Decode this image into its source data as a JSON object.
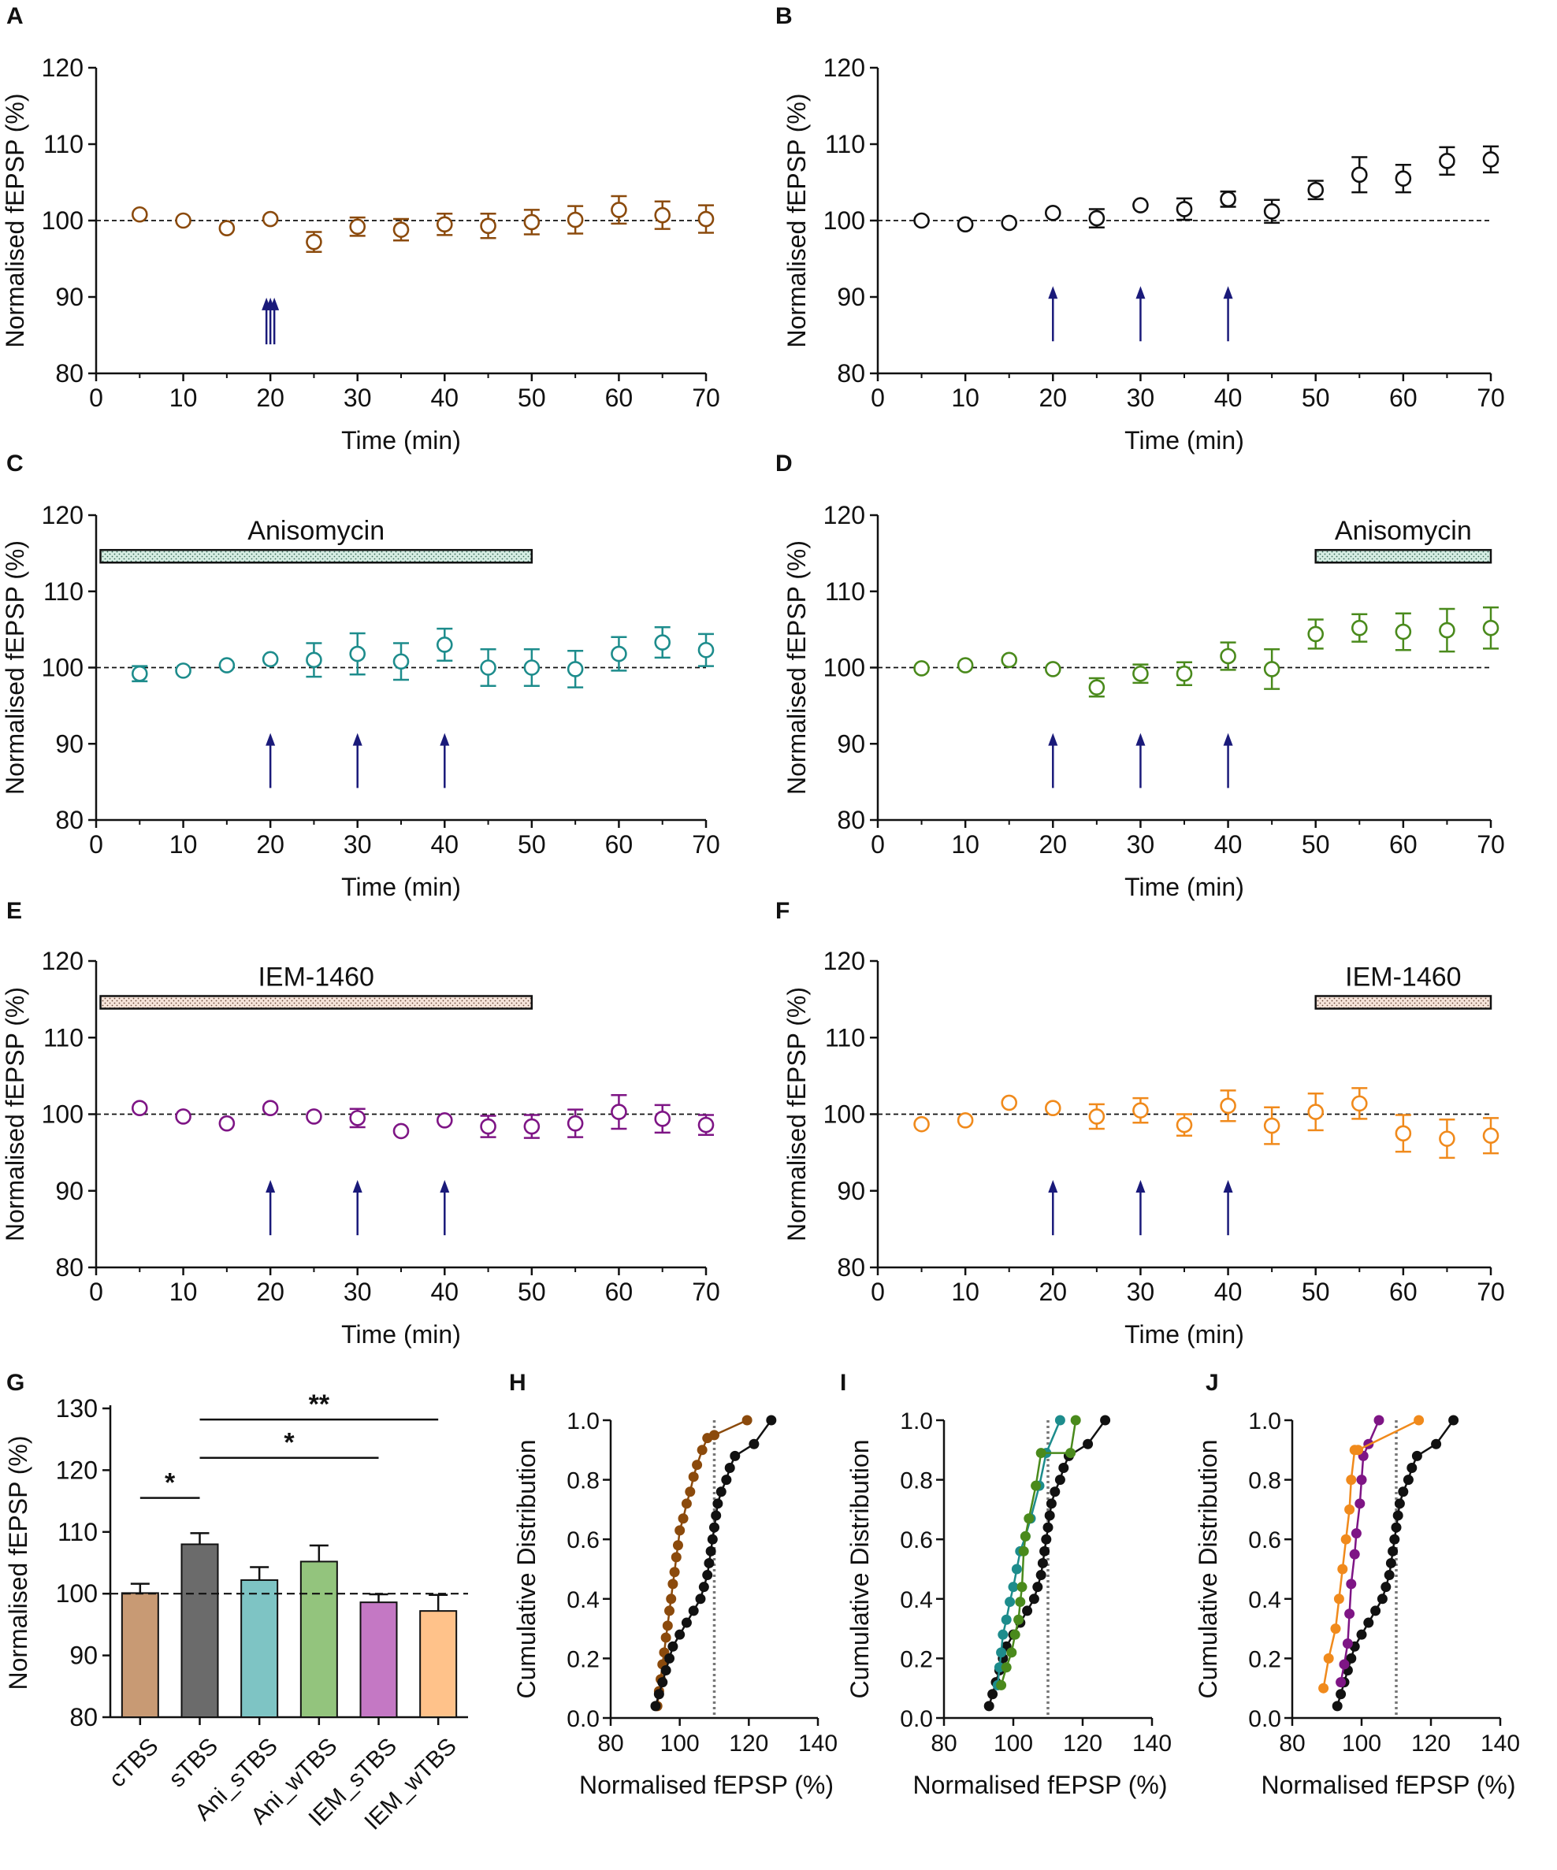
{
  "colors": {
    "A": "#8B4A0C",
    "B": "#111111",
    "C": "#1D8C8C",
    "D": "#4A8A1C",
    "E": "#7E1585",
    "F": "#F08A1C",
    "arrow": "#1A1A7A",
    "bar_aniso_fill": "#D6EDE3",
    "bar_iem_fill": "#F6E4DA"
  },
  "chart_data": [
    {
      "id": "A",
      "type": "scatter",
      "panel_label": "A",
      "xlabel": "Time (min)",
      "ylabel": "Normalised fEPSP (%)",
      "xlim": [
        0,
        70
      ],
      "ylim": [
        80,
        120
      ],
      "xticks": [
        "0",
        "10",
        "20",
        "30",
        "40",
        "50",
        "60",
        "70"
      ],
      "yticks": [
        "80",
        "90",
        "100",
        "110",
        "120"
      ],
      "baseline": 100,
      "x": [
        5,
        10,
        15,
        20,
        25,
        30,
        35,
        40,
        45,
        50,
        55,
        60,
        65,
        70
      ],
      "y": [
        100.8,
        100.0,
        99.0,
        100.2,
        97.2,
        99.2,
        98.8,
        99.5,
        99.3,
        99.8,
        100.1,
        101.4,
        100.7,
        100.2
      ],
      "err": [
        0.3,
        0.3,
        0.4,
        0.4,
        1.3,
        1.2,
        1.4,
        1.4,
        1.6,
        1.6,
        1.8,
        1.8,
        1.8,
        1.8
      ],
      "arrows": [
        {
          "x": 20,
          "count": 3
        }
      ],
      "drug_bar": null
    },
    {
      "id": "B",
      "type": "scatter",
      "panel_label": "B",
      "xlabel": "Time (min)",
      "ylabel": "Normalised fEPSP (%)",
      "xlim": [
        0,
        70
      ],
      "ylim": [
        80,
        120
      ],
      "xticks": [
        "0",
        "10",
        "20",
        "30",
        "40",
        "50",
        "60",
        "70"
      ],
      "yticks": [
        "80",
        "90",
        "100",
        "110",
        "120"
      ],
      "baseline": 100,
      "x": [
        5,
        10,
        15,
        20,
        25,
        30,
        35,
        40,
        45,
        50,
        55,
        60,
        65,
        70
      ],
      "y": [
        100.0,
        99.5,
        99.7,
        101.0,
        100.3,
        102.0,
        101.5,
        102.8,
        101.2,
        104.0,
        106.0,
        105.5,
        107.8,
        108.0
      ],
      "err": [
        0.3,
        0.3,
        0.4,
        0.4,
        1.2,
        0.5,
        1.4,
        1.0,
        1.5,
        1.2,
        2.3,
        1.8,
        1.8,
        1.7
      ],
      "arrows": [
        {
          "x": 20,
          "count": 1
        },
        {
          "x": 30,
          "count": 1
        },
        {
          "x": 40,
          "count": 1
        }
      ],
      "drug_bar": null
    },
    {
      "id": "C",
      "type": "scatter",
      "panel_label": "C",
      "xlabel": "Time (min)",
      "ylabel": "Normalised fEPSP (%)",
      "xlim": [
        0,
        70
      ],
      "ylim": [
        80,
        120
      ],
      "xticks": [
        "0",
        "10",
        "20",
        "30",
        "40",
        "50",
        "60",
        "70"
      ],
      "yticks": [
        "80",
        "90",
        "100",
        "110",
        "120"
      ],
      "baseline": 100,
      "x": [
        5,
        10,
        15,
        20,
        25,
        30,
        35,
        40,
        45,
        50,
        55,
        60,
        65,
        70
      ],
      "y": [
        99.2,
        99.6,
        100.3,
        101.1,
        101.0,
        101.8,
        100.8,
        103.0,
        100.0,
        100.0,
        99.8,
        101.8,
        103.3,
        102.3
      ],
      "err": [
        1.0,
        0.3,
        0.3,
        0.5,
        2.2,
        2.7,
        2.4,
        2.1,
        2.4,
        2.4,
        2.4,
        2.2,
        2.0,
        2.1
      ],
      "arrows": [
        {
          "x": 20,
          "count": 1
        },
        {
          "x": 30,
          "count": 1
        },
        {
          "x": 40,
          "count": 1
        }
      ],
      "drug_bar": {
        "label": "Anisomycin",
        "x_start": 0.5,
        "x_end": 50,
        "fill": "aniso"
      }
    },
    {
      "id": "D",
      "type": "scatter",
      "panel_label": "D",
      "xlabel": "Time (min)",
      "ylabel": "Normalised fEPSP (%)",
      "xlim": [
        0,
        70
      ],
      "ylim": [
        80,
        120
      ],
      "xticks": [
        "0",
        "10",
        "20",
        "30",
        "40",
        "50",
        "60",
        "70"
      ],
      "yticks": [
        "80",
        "90",
        "100",
        "110",
        "120"
      ],
      "baseline": 100,
      "x": [
        5,
        10,
        15,
        20,
        25,
        30,
        35,
        40,
        45,
        50,
        55,
        60,
        65,
        70
      ],
      "y": [
        99.9,
        100.3,
        101.0,
        99.8,
        97.4,
        99.2,
        99.2,
        101.5,
        99.8,
        104.4,
        105.2,
        104.7,
        104.9,
        105.2
      ],
      "err": [
        0.3,
        0.3,
        0.4,
        0.4,
        1.2,
        1.2,
        1.5,
        1.8,
        2.6,
        1.9,
        1.8,
        2.4,
        2.8,
        2.7
      ],
      "arrows": [
        {
          "x": 20,
          "count": 1
        },
        {
          "x": 30,
          "count": 1
        },
        {
          "x": 40,
          "count": 1
        }
      ],
      "drug_bar": {
        "label": "Anisomycin",
        "x_start": 50,
        "x_end": 70,
        "fill": "aniso"
      }
    },
    {
      "id": "E",
      "type": "scatter",
      "panel_label": "E",
      "xlabel": "Time (min)",
      "ylabel": "Normalised fEPSP (%)",
      "xlim": [
        0,
        70
      ],
      "ylim": [
        80,
        120
      ],
      "xticks": [
        "0",
        "10",
        "20",
        "30",
        "40",
        "50",
        "60",
        "70"
      ],
      "yticks": [
        "80",
        "90",
        "100",
        "110",
        "120"
      ],
      "baseline": 100,
      "x": [
        5,
        10,
        15,
        20,
        25,
        30,
        35,
        40,
        45,
        50,
        55,
        60,
        65,
        70
      ],
      "y": [
        100.8,
        99.7,
        98.8,
        100.8,
        99.7,
        99.5,
        97.8,
        99.2,
        98.4,
        98.4,
        98.8,
        100.3,
        99.4,
        98.6
      ],
      "err": [
        0.3,
        0.3,
        0.4,
        0.4,
        0.5,
        1.2,
        0.4,
        0.5,
        1.4,
        1.5,
        1.8,
        2.2,
        1.8,
        1.3
      ],
      "arrows": [
        {
          "x": 20,
          "count": 1
        },
        {
          "x": 30,
          "count": 1
        },
        {
          "x": 40,
          "count": 1
        }
      ],
      "drug_bar": {
        "label": "IEM-1460",
        "x_start": 0.5,
        "x_end": 50,
        "fill": "iem"
      }
    },
    {
      "id": "F",
      "type": "scatter",
      "panel_label": "F",
      "xlabel": "Time (min)",
      "ylabel": "Normalised fEPSP (%)",
      "xlim": [
        0,
        70
      ],
      "ylim": [
        80,
        120
      ],
      "xticks": [
        "0",
        "10",
        "20",
        "30",
        "40",
        "50",
        "60",
        "70"
      ],
      "yticks": [
        "80",
        "90",
        "100",
        "110",
        "120"
      ],
      "baseline": 100,
      "x": [
        5,
        10,
        15,
        20,
        25,
        30,
        35,
        40,
        45,
        50,
        55,
        60,
        65,
        70
      ],
      "y": [
        98.7,
        99.2,
        101.5,
        100.8,
        99.7,
        100.5,
        98.6,
        101.1,
        98.5,
        100.3,
        101.4,
        97.5,
        96.8,
        97.2
      ],
      "err": [
        0.3,
        0.3,
        0.4,
        0.4,
        1.6,
        1.6,
        1.4,
        2.0,
        2.4,
        2.4,
        2.0,
        2.4,
        2.5,
        2.3
      ],
      "arrows": [
        {
          "x": 20,
          "count": 1
        },
        {
          "x": 30,
          "count": 1
        },
        {
          "x": 40,
          "count": 1
        }
      ],
      "drug_bar": {
        "label": "IEM-1460",
        "x_start": 50,
        "x_end": 70,
        "fill": "iem"
      }
    },
    {
      "id": "G",
      "type": "bar",
      "panel_label": "G",
      "ylabel": "Normalised fEPSP (%)",
      "ylim": [
        80,
        130
      ],
      "yticks": [
        "80",
        "90",
        "100",
        "110",
        "120",
        "130"
      ],
      "baseline": 100,
      "categories": [
        "cTBS",
        "sTBS",
        "Ani_sTBS",
        "Ani_wTBS",
        "IEM_sTBS",
        "IEM_wTBS"
      ],
      "values": [
        100.1,
        108.0,
        102.2,
        105.2,
        98.6,
        97.2
      ],
      "errors": [
        1.5,
        1.8,
        2.1,
        2.6,
        1.3,
        2.6
      ],
      "fills": [
        "#C89A74",
        "#6B6B6B",
        "#7EC4C4",
        "#93C47D",
        "#C478C4",
        "#FFC28A"
      ],
      "significance": [
        {
          "from": 0,
          "to": 1,
          "y": 115.5,
          "label": "*"
        },
        {
          "from": 1,
          "to": 4,
          "y": 122.0,
          "label": "*"
        },
        {
          "from": 1,
          "to": 5,
          "y": 128.2,
          "label": "**"
        }
      ]
    },
    {
      "id": "H",
      "type": "line",
      "panel_label": "H",
      "xlabel": "Normalised fEPSP (%)",
      "ylabel": "Cumulative Distribution",
      "xlim": [
        80,
        140
      ],
      "ylim": [
        0,
        1.0
      ],
      "xticks": [
        "80",
        "100",
        "120",
        "140"
      ],
      "yticks": [
        "0.0",
        "0.2",
        "0.4",
        "0.6",
        "0.8",
        "1.0"
      ],
      "threshold_x": 110,
      "series": [
        {
          "name": "cTBS",
          "color": "#8B4A0C",
          "x": [
            93.5,
            94.0,
            94.5,
            95.0,
            95.5,
            96.0,
            96.5,
            97.0,
            97.5,
            98.0,
            98.5,
            99.0,
            99.5,
            100.0,
            101.0,
            102.0,
            103.0,
            104.0,
            105.0,
            106.5,
            108.0,
            110.0,
            119.5
          ],
          "y": [
            0.04,
            0.09,
            0.13,
            0.18,
            0.22,
            0.27,
            0.31,
            0.36,
            0.4,
            0.45,
            0.49,
            0.54,
            0.58,
            0.63,
            0.67,
            0.72,
            0.76,
            0.81,
            0.85,
            0.9,
            0.94,
            0.95,
            1.0
          ]
        },
        {
          "name": "sTBS",
          "color": "#111111",
          "x": [
            93.0,
            94.0,
            95.0,
            96.0,
            97.0,
            98.0,
            100.0,
            102.0,
            104.0,
            106.0,
            107.0,
            108.0,
            108.5,
            109.0,
            109.5,
            110.0,
            110.5,
            111.0,
            112.0,
            113.5,
            114.5,
            116.0,
            121.5,
            126.5
          ],
          "y": [
            0.04,
            0.08,
            0.12,
            0.16,
            0.2,
            0.24,
            0.28,
            0.32,
            0.36,
            0.4,
            0.44,
            0.48,
            0.52,
            0.56,
            0.6,
            0.64,
            0.68,
            0.72,
            0.76,
            0.8,
            0.84,
            0.88,
            0.92,
            1.0
          ]
        }
      ]
    },
    {
      "id": "I",
      "type": "line",
      "panel_label": "I",
      "xlabel": "Normalised fEPSP (%)",
      "ylabel": "Cumulative Distribution",
      "xlim": [
        80,
        140
      ],
      "ylim": [
        0,
        1.0
      ],
      "xticks": [
        "80",
        "100",
        "120",
        "140"
      ],
      "yticks": [
        "0.0",
        "0.2",
        "0.4",
        "0.6",
        "0.8",
        "1.0"
      ],
      "threshold_x": 110,
      "series": [
        {
          "name": "sTBS",
          "color": "#111111",
          "x": [
            93.0,
            94.0,
            95.0,
            96.0,
            97.0,
            98.0,
            100.0,
            102.0,
            104.0,
            106.0,
            107.0,
            108.0,
            108.5,
            109.0,
            109.5,
            110.0,
            110.5,
            111.0,
            112.0,
            113.5,
            114.5,
            116.0,
            121.5,
            126.5
          ],
          "y": [
            0.04,
            0.08,
            0.12,
            0.16,
            0.2,
            0.24,
            0.28,
            0.32,
            0.36,
            0.4,
            0.44,
            0.48,
            0.52,
            0.56,
            0.6,
            0.64,
            0.68,
            0.72,
            0.76,
            0.8,
            0.84,
            0.88,
            0.92,
            1.0
          ]
        },
        {
          "name": "Ani_sTBS",
          "color": "#1D8C8C",
          "x": [
            95.5,
            96.0,
            96.5,
            97.0,
            98.0,
            99.0,
            100.0,
            101.0,
            102.0,
            103.5,
            105.0,
            107.5,
            109.5,
            113.5
          ],
          "y": [
            0.11,
            0.17,
            0.22,
            0.28,
            0.33,
            0.39,
            0.44,
            0.5,
            0.56,
            0.61,
            0.67,
            0.78,
            0.89,
            1.0
          ]
        },
        {
          "name": "Ani_wTBS",
          "color": "#4A8A1C",
          "x": [
            96.5,
            98.0,
            99.5,
            100.5,
            101.5,
            102.0,
            102.5,
            103.0,
            103.5,
            104.5,
            106.5,
            108.0,
            116.5,
            118.0
          ],
          "y": [
            0.11,
            0.17,
            0.22,
            0.28,
            0.33,
            0.39,
            0.44,
            0.56,
            0.61,
            0.67,
            0.78,
            0.89,
            0.89,
            1.0
          ]
        }
      ]
    },
    {
      "id": "J",
      "type": "line",
      "panel_label": "J",
      "xlabel": "Normalised fEPSP (%)",
      "ylabel": "Cumulative Distribution",
      "xlim": [
        80,
        140
      ],
      "ylim": [
        0,
        1.0
      ],
      "xticks": [
        "80",
        "100",
        "120",
        "140"
      ],
      "yticks": [
        "0.0",
        "0.2",
        "0.4",
        "0.6",
        "0.8",
        "1.0"
      ],
      "threshold_x": 110,
      "series": [
        {
          "name": "sTBS",
          "color": "#111111",
          "x": [
            93.0,
            94.0,
            95.0,
            96.0,
            97.0,
            98.0,
            100.0,
            102.0,
            104.0,
            106.0,
            107.0,
            108.0,
            108.5,
            109.0,
            109.5,
            110.0,
            110.5,
            111.0,
            112.0,
            113.5,
            114.5,
            116.0,
            121.5,
            126.5
          ],
          "y": [
            0.04,
            0.08,
            0.12,
            0.16,
            0.2,
            0.24,
            0.28,
            0.32,
            0.36,
            0.4,
            0.44,
            0.48,
            0.52,
            0.56,
            0.6,
            0.64,
            0.68,
            0.72,
            0.76,
            0.8,
            0.84,
            0.88,
            0.92,
            1.0
          ]
        },
        {
          "name": "IEM_sTBS",
          "color": "#7E1585",
          "x": [
            94.0,
            95.0,
            96.0,
            96.5,
            97.0,
            98.0,
            98.5,
            99.5,
            100.0,
            100.5,
            102.0,
            105.0
          ],
          "y": [
            0.12,
            0.18,
            0.25,
            0.35,
            0.45,
            0.55,
            0.62,
            0.72,
            0.8,
            0.88,
            0.92,
            1.0
          ]
        },
        {
          "name": "IEM_wTBS",
          "color": "#F08A1C",
          "x": [
            89.0,
            90.5,
            92.5,
            93.5,
            94.5,
            95.5,
            96.5,
            97.0,
            98.0,
            99.0,
            116.5
          ],
          "y": [
            0.1,
            0.2,
            0.3,
            0.4,
            0.5,
            0.6,
            0.7,
            0.8,
            0.9,
            0.9,
            1.0
          ]
        }
      ]
    }
  ]
}
